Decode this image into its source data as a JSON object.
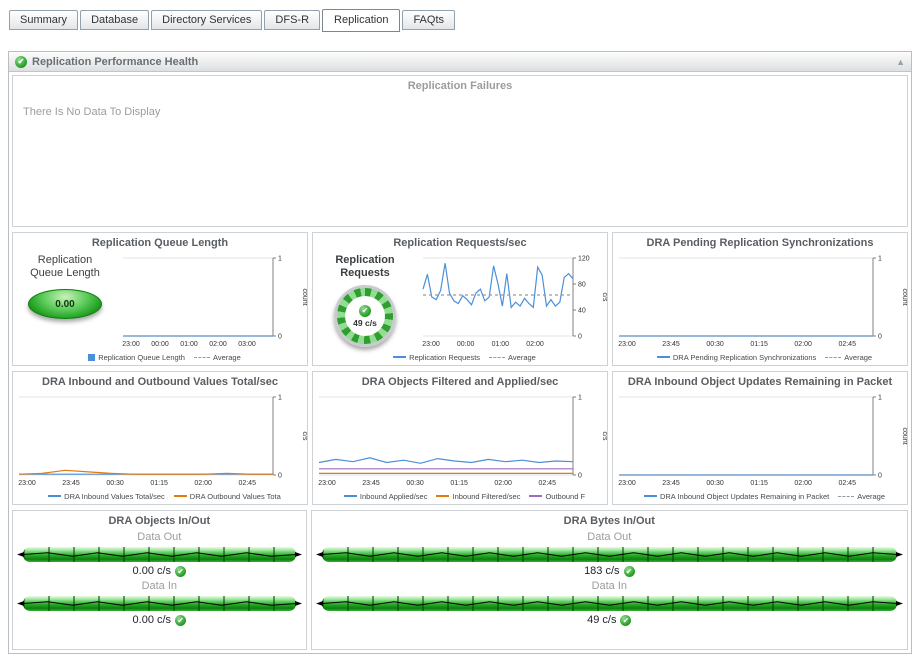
{
  "tabs": [
    {
      "label": "Summary"
    },
    {
      "label": "Database"
    },
    {
      "label": "Directory Services"
    },
    {
      "label": "DFS-R"
    },
    {
      "label": "Replication"
    },
    {
      "label": "FAQts"
    }
  ],
  "active_tab": "Replication",
  "panel": {
    "title": "Replication Performance Health"
  },
  "failures": {
    "title": "Replication Failures",
    "no_data": "There Is No Data To Display"
  },
  "gauges": {
    "queue": {
      "label": "Replication Queue Length",
      "value": "0.00"
    },
    "requests": {
      "label": "Replication Requests",
      "value": "49 c/s"
    }
  },
  "io_panels": [
    {
      "title": "DRA Objects In/Out",
      "rows": [
        {
          "label": "Data Out",
          "value": "0.00 c/s"
        },
        {
          "label": "Data In",
          "value": "0.00 c/s"
        }
      ]
    },
    {
      "title": "DRA Bytes In/Out",
      "rows": [
        {
          "label": "Data Out",
          "value": "183 c/s"
        },
        {
          "label": "Data In",
          "value": "49 c/s"
        }
      ]
    }
  ],
  "colors": {
    "line_blue": "#4a90d9",
    "line_orange": "#e07b10",
    "line_purple": "#9a6fc0",
    "status_green": "#2f9e2f"
  },
  "chart_data": [
    {
      "type": "line",
      "title": "Replication Queue Length",
      "y_label": "count",
      "ylim": [
        0,
        1
      ],
      "y_ticks": [
        0,
        1
      ],
      "x_ticks": [
        "23:00",
        "00:00",
        "01:00",
        "02:00",
        "03:00"
      ],
      "x_span": 0.88,
      "series": [
        {
          "name": "Replication Queue Length",
          "color": "#4a90d9",
          "values": [
            0,
            0,
            0,
            0,
            0,
            0,
            0,
            0,
            0,
            0,
            0,
            0
          ]
        },
        {
          "name": "Average",
          "color": "#999999",
          "dash": true,
          "values": [
            0,
            0
          ]
        }
      ],
      "legend": [
        {
          "label": "Replication Queue Length",
          "color": "#4a90d9",
          "type": "square"
        },
        {
          "label": "Average",
          "color": "#999999",
          "type": "dash"
        }
      ]
    },
    {
      "type": "line",
      "title": "Replication Requests/sec",
      "y_label": "c/s",
      "ylim": [
        0,
        120
      ],
      "y_ticks": [
        0,
        40,
        80,
        120
      ],
      "x_ticks": [
        "23:00",
        "00:00",
        "01:00",
        "02:00"
      ],
      "x_span": 0.8,
      "series": [
        {
          "name": "Replication Requests",
          "color": "#4a90d9",
          "values": [
            72,
            95,
            60,
            56,
            70,
            112,
            66,
            54,
            50,
            62,
            56,
            48,
            66,
            72,
            54,
            60,
            108,
            80,
            46,
            96,
            44,
            52,
            46,
            58,
            50,
            44,
            106,
            94,
            46,
            56,
            46,
            52,
            90,
            96,
            88
          ]
        },
        {
          "name": "Average",
          "color": "#999999",
          "dash": true,
          "values": [
            63,
            63
          ]
        }
      ],
      "legend": [
        {
          "label": "Replication Requests",
          "color": "#4a90d9",
          "type": "line"
        },
        {
          "label": "Average",
          "color": "#999999",
          "type": "dash"
        }
      ]
    },
    {
      "type": "line",
      "title": "DRA Pending Replication Synchronizations",
      "y_label": "count",
      "ylim": [
        0,
        1
      ],
      "y_ticks": [
        0,
        1
      ],
      "x_ticks": [
        "23:00",
        "23:45",
        "00:30",
        "01:15",
        "02:00",
        "02:45"
      ],
      "x_span": 0.93,
      "series": [
        {
          "name": "DRA Pending Replication Synchronizations",
          "color": "#4a90d9",
          "values": [
            0,
            0,
            0,
            0,
            0,
            0,
            0,
            0,
            0,
            0,
            0,
            0
          ]
        },
        {
          "name": "Average",
          "color": "#999999",
          "dash": true,
          "values": [
            0,
            0
          ]
        }
      ],
      "legend": [
        {
          "label": "DRA Pending Replication Synchronizations",
          "color": "#4a90d9",
          "type": "line"
        },
        {
          "label": "Average",
          "color": "#999999",
          "type": "dash"
        }
      ]
    },
    {
      "type": "line",
      "title": "DRA Inbound and Outbound Values Total/sec",
      "y_label": "c/s",
      "ylim": [
        0,
        1
      ],
      "y_ticks": [
        0,
        1
      ],
      "x_ticks": [
        "23:00",
        "23:45",
        "00:30",
        "01:15",
        "02:00",
        "02:45"
      ],
      "x_span": 0.93,
      "series": [
        {
          "name": "DRA Inbound Values Total/sec",
          "color": "#4a90d9",
          "values": [
            0.01,
            0.01,
            0.01,
            0.01,
            0.01,
            0.01,
            0.01,
            0.01,
            0.01,
            0.01,
            0.01,
            0.01
          ]
        },
        {
          "name": "DRA Outbound Values Total/sec",
          "color": "#e07b10",
          "values": [
            0.01,
            0.02,
            0.06,
            0.04,
            0.02,
            0.01,
            0.01,
            0.01,
            0.01,
            0.02,
            0.01,
            0.01
          ]
        }
      ],
      "legend": [
        {
          "label": "DRA Inbound Values Total/sec",
          "color": "#4a90d9",
          "type": "line"
        },
        {
          "label": "DRA Outbound Values Tota",
          "color": "#e07b10",
          "type": "line"
        }
      ]
    },
    {
      "type": "line",
      "title": "DRA Objects Filtered and Applied/sec",
      "y_label": "c/s",
      "ylim": [
        0,
        1
      ],
      "y_ticks": [
        0,
        1
      ],
      "x_ticks": [
        "23:00",
        "23:45",
        "00:30",
        "01:15",
        "02:00",
        "02:45"
      ],
      "x_span": 0.93,
      "series": [
        {
          "name": "Inbound Applied/sec",
          "color": "#4a90d9",
          "values": [
            0.16,
            0.2,
            0.17,
            0.22,
            0.16,
            0.19,
            0.15,
            0.21,
            0.18,
            0.16,
            0.2,
            0.17,
            0.19,
            0.16,
            0.18,
            0.17
          ]
        },
        {
          "name": "Inbound Filtered/sec",
          "color": "#e07b10",
          "values": [
            0.02,
            0.02,
            0.02,
            0.02,
            0.02,
            0.02,
            0.02,
            0.02,
            0.02,
            0.02,
            0.02,
            0.02,
            0.02,
            0.02,
            0.02,
            0.02
          ]
        },
        {
          "name": "Outbound Filtered/sec",
          "color": "#9a6fc0",
          "values": [
            0.08,
            0.08,
            0.08,
            0.08,
            0.08,
            0.08,
            0.08,
            0.08,
            0.08,
            0.08,
            0.08,
            0.08,
            0.08,
            0.08,
            0.08,
            0.08
          ]
        }
      ],
      "legend": [
        {
          "label": "Inbound Applied/sec",
          "color": "#4a90d9",
          "type": "line"
        },
        {
          "label": "Inbound Filtered/sec",
          "color": "#e07b10",
          "type": "line"
        },
        {
          "label": "Outbound F",
          "color": "#9a6fc0",
          "type": "line"
        }
      ]
    },
    {
      "type": "line",
      "title": "DRA Inbound Object Updates Remaining in Packet",
      "y_label": "count",
      "ylim": [
        0,
        1
      ],
      "y_ticks": [
        0,
        1
      ],
      "x_ticks": [
        "23:00",
        "23:45",
        "00:30",
        "01:15",
        "02:00",
        "02:45"
      ],
      "x_span": 0.93,
      "series": [
        {
          "name": "DRA Inbound Object Updates Remaining in Packet",
          "color": "#4a90d9",
          "values": [
            0,
            0,
            0,
            0,
            0,
            0,
            0,
            0,
            0,
            0,
            0,
            0
          ]
        },
        {
          "name": "Average",
          "color": "#999999",
          "dash": true,
          "values": [
            0,
            0
          ]
        }
      ],
      "legend": [
        {
          "label": "DRA Inbound Object Updates Remaining in Packet",
          "color": "#4a90d9",
          "type": "line"
        },
        {
          "label": "Average",
          "color": "#999999",
          "type": "dash"
        }
      ]
    }
  ]
}
